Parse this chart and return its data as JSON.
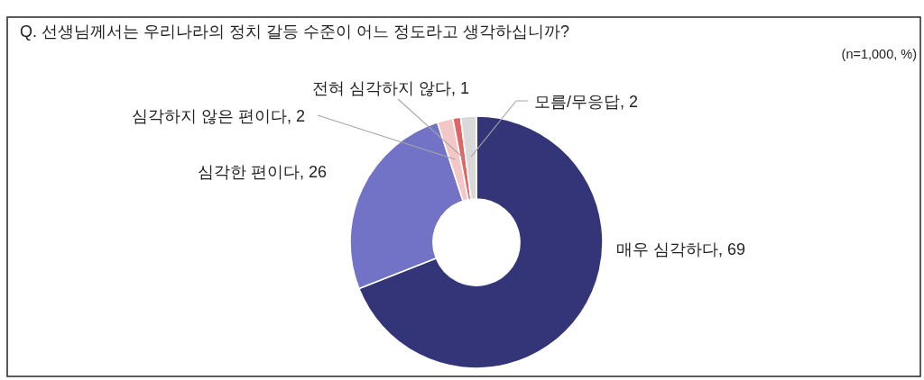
{
  "chart_data": {
    "type": "donut",
    "title": "Q. 선생님께서는 우리나라의 정치 갈등 수준이 어느 정도라고 생각하십니까?",
    "subtitle": "(n=1,000, %)",
    "categories": [
      "매우 심각하다",
      "심각한 편이다",
      "심각하지 않은 편이다",
      "전혀 심각하지 않다",
      "모름/무응답"
    ],
    "values": [
      69,
      26,
      2,
      1,
      2
    ],
    "value_labels": [
      ", 69",
      ", 26",
      ", 2",
      ", 1",
      ", 2"
    ],
    "colors": [
      "#343479",
      "#7272c6",
      "#f4c7c7",
      "#e06666",
      "#d9d9d9"
    ]
  }
}
